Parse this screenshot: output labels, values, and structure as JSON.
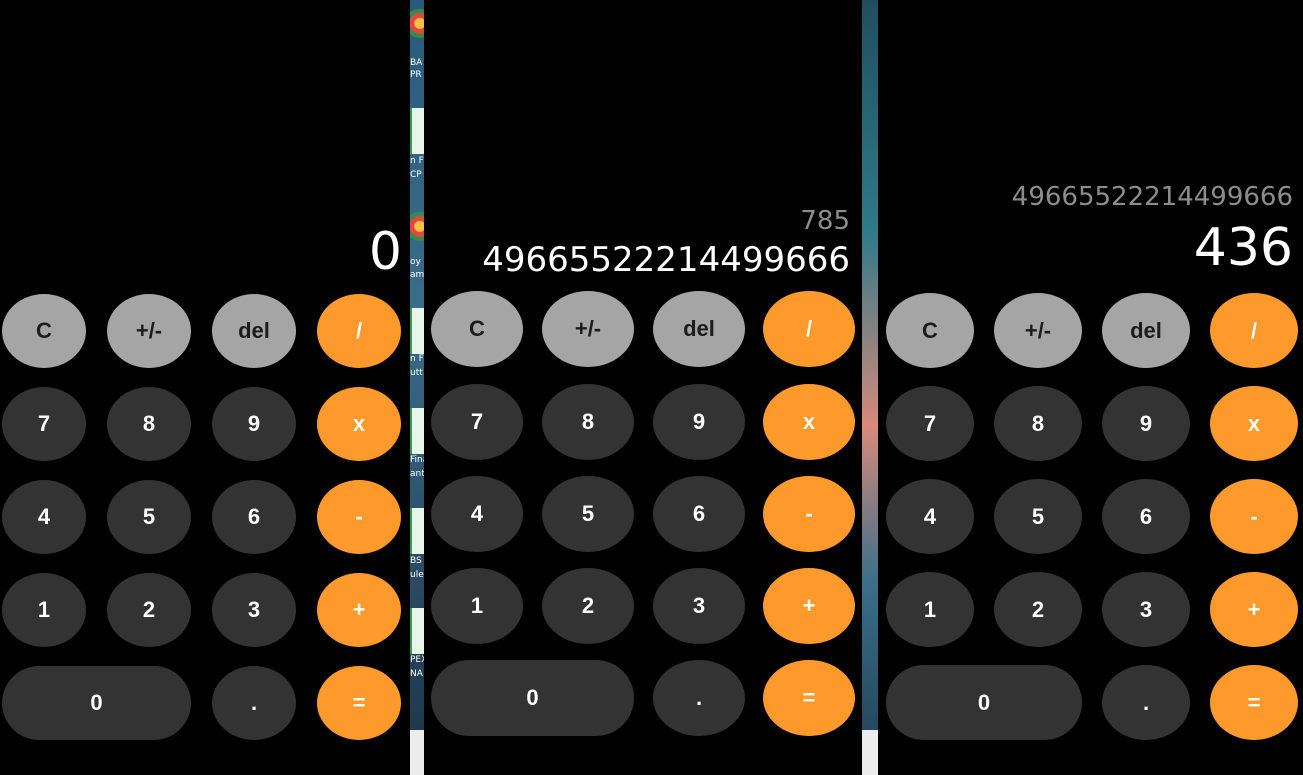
{
  "desktop": {
    "labels_left": [
      "BA",
      "PR",
      "n F",
      "CP",
      "oy",
      "am",
      "n F",
      "utt",
      "Fina",
      "ante",
      "BS",
      "ule",
      "PEX",
      "NA"
    ]
  },
  "panels": [
    {
      "expression": "",
      "result": "0",
      "buttons": [
        "C",
        "+/-",
        "del",
        "/",
        "7",
        "8",
        "9",
        "x",
        "4",
        "5",
        "6",
        "-",
        "1",
        "2",
        "3",
        "+",
        "0",
        ".",
        "="
      ]
    },
    {
      "expression": "785",
      "result": "49665522214499666",
      "buttons": [
        "C",
        "+/-",
        "del",
        "/",
        "7",
        "8",
        "9",
        "x",
        "4",
        "5",
        "6",
        "-",
        "1",
        "2",
        "3",
        "+",
        "0",
        ".",
        "="
      ]
    },
    {
      "expression": "49665522214499666",
      "result": "436",
      "buttons": [
        "C",
        "+/-",
        "del",
        "/",
        "7",
        "8",
        "9",
        "x",
        "4",
        "5",
        "6",
        "-",
        "1",
        "2",
        "3",
        "+",
        "0",
        ".",
        "="
      ]
    }
  ],
  "colors": {
    "gray": "#a5a5a5",
    "dark": "#333333",
    "orange": "#fe9a2c"
  }
}
